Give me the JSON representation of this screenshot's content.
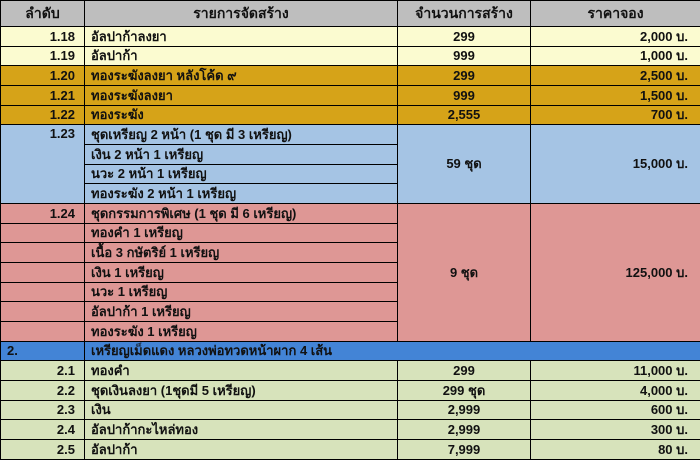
{
  "colors": {
    "header": "#BEBEBE",
    "cream": "#FBFBD0",
    "gold": "#D6A318",
    "blue": "#A5C4E4",
    "pink": "#DE9795",
    "section": "#4384D6",
    "green": "#D7E3BB",
    "border": "#000000"
  },
  "table": {
    "columns": [
      {
        "label": "ลำดับ"
      },
      {
        "label": "รายการจัดสร้าง"
      },
      {
        "label": "จำนวนการสร้าง"
      },
      {
        "label": "ราคาจอง"
      }
    ],
    "rows": [
      {
        "bg": "cream",
        "cells": [
          {
            "type": "no",
            "text": "1.18"
          },
          {
            "type": "item",
            "text": "อัลปาก้าลงยา"
          },
          {
            "type": "qty",
            "text": "299"
          },
          {
            "type": "price",
            "text": "2,000 บ."
          }
        ]
      },
      {
        "bg": "cream",
        "cells": [
          {
            "type": "no",
            "text": "1.19"
          },
          {
            "type": "item",
            "text": "อัลปาก้า"
          },
          {
            "type": "qty",
            "text": "999"
          },
          {
            "type": "price",
            "text": "1,000 บ."
          }
        ]
      },
      {
        "bg": "gold",
        "cells": [
          {
            "type": "no",
            "text": "1.20"
          },
          {
            "type": "item",
            "text": "ทองระฆังลงยา หลังโค้ด ๙"
          },
          {
            "type": "qty",
            "text": "299"
          },
          {
            "type": "price",
            "text": "2,500 บ."
          }
        ]
      },
      {
        "bg": "gold",
        "cells": [
          {
            "type": "no",
            "text": "1.21"
          },
          {
            "type": "item",
            "text": "ทองระฆังลงยา"
          },
          {
            "type": "qty",
            "text": "999"
          },
          {
            "type": "price",
            "text": "1,500 บ."
          }
        ]
      },
      {
        "bg": "gold",
        "cells": [
          {
            "type": "no",
            "text": "1.22"
          },
          {
            "type": "item",
            "text": "ทองระฆัง"
          },
          {
            "type": "qty",
            "text": "2,555"
          },
          {
            "type": "price",
            "text": "700 บ."
          }
        ]
      },
      {
        "bg": "blue",
        "cells": [
          {
            "type": "no",
            "text": "1.23",
            "rowspan": 4
          },
          {
            "type": "item",
            "text": "ชุดเหรียญ 2 หน้า (1 ชุด มี 3 เหรียญ)"
          },
          {
            "type": "qty",
            "text": "59 ชุด",
            "rowspan": 4
          },
          {
            "type": "price",
            "text": "15,000 บ.",
            "rowspan": 4
          }
        ]
      },
      {
        "bg": "blue",
        "cells": [
          {
            "type": "item",
            "text": "เงิน 2 หน้า 1 เหรียญ"
          }
        ]
      },
      {
        "bg": "blue",
        "cells": [
          {
            "type": "item",
            "text": "นวะ 2 หน้า 1 เหรียญ"
          }
        ]
      },
      {
        "bg": "blue",
        "cells": [
          {
            "type": "item",
            "text": "ทองระฆัง 2 หน้า 1 เหรียญ"
          }
        ]
      },
      {
        "bg": "pink",
        "cells": [
          {
            "type": "no",
            "text": "1.24"
          },
          {
            "type": "item",
            "text": "ชุดกรรมการพิเศษ (1 ชุด มี 6 เหรียญ)"
          },
          {
            "type": "qty",
            "text": "9 ชุด",
            "rowspan": 7
          },
          {
            "type": "price",
            "text": "125,000 บ.",
            "rowspan": 7
          }
        ]
      },
      {
        "bg": "pink",
        "cells": [
          {
            "type": "no",
            "text": ""
          },
          {
            "type": "item",
            "text": "ทองคำ 1 เหรียญ"
          }
        ]
      },
      {
        "bg": "pink",
        "cells": [
          {
            "type": "no",
            "text": ""
          },
          {
            "type": "item",
            "text": "เนื้อ 3 กษัตริย์ 1 เหรียญ"
          }
        ]
      },
      {
        "bg": "pink",
        "cells": [
          {
            "type": "no",
            "text": ""
          },
          {
            "type": "item",
            "text": "เงิน 1 เหรียญ"
          }
        ]
      },
      {
        "bg": "pink",
        "cells": [
          {
            "type": "no",
            "text": ""
          },
          {
            "type": "item",
            "text": "นวะ 1 เหรียญ"
          }
        ]
      },
      {
        "bg": "pink",
        "cells": [
          {
            "type": "no",
            "text": ""
          },
          {
            "type": "item",
            "text": "อัลปาก้า 1 เหรียญ"
          }
        ]
      },
      {
        "bg": "pink",
        "cells": [
          {
            "type": "no",
            "text": ""
          },
          {
            "type": "item",
            "text": "ทองระฆัง 1 เหรียญ"
          }
        ]
      },
      {
        "bg": "section",
        "cells": [
          {
            "type": "sec-no",
            "text": "2."
          },
          {
            "type": "title",
            "text": "เหรียญเม็ดแดง หลวงพ่อทวดหน้าผาก 4 เส้น",
            "colspan": 3
          }
        ]
      },
      {
        "bg": "green",
        "cells": [
          {
            "type": "no",
            "text": "2.1"
          },
          {
            "type": "item",
            "text": "ทองคำ"
          },
          {
            "type": "qty",
            "text": "299"
          },
          {
            "type": "price",
            "text": "11,000 บ."
          }
        ]
      },
      {
        "bg": "green",
        "cells": [
          {
            "type": "no",
            "text": "2.2"
          },
          {
            "type": "item",
            "text": "ชุดเงินลงยา (1ชุดมี 5 เหรียญ)"
          },
          {
            "type": "qty",
            "text": "299 ชุด"
          },
          {
            "type": "price",
            "text": "4,000 บ."
          }
        ]
      },
      {
        "bg": "green",
        "cells": [
          {
            "type": "no",
            "text": "2.3"
          },
          {
            "type": "item",
            "text": "เงิน"
          },
          {
            "type": "qty",
            "text": "2,999"
          },
          {
            "type": "price",
            "text": "600 บ."
          }
        ]
      },
      {
        "bg": "green",
        "cells": [
          {
            "type": "no",
            "text": "2.4"
          },
          {
            "type": "item",
            "text": "อัลปาก้ากะไหล่ทอง"
          },
          {
            "type": "qty",
            "text": "2,999"
          },
          {
            "type": "price",
            "text": "300 บ."
          }
        ]
      },
      {
        "bg": "green",
        "cells": [
          {
            "type": "no",
            "text": "2.5"
          },
          {
            "type": "item",
            "text": "อัลปาก้า"
          },
          {
            "type": "qty",
            "text": "7,999"
          },
          {
            "type": "price",
            "text": "80 บ."
          }
        ]
      }
    ]
  }
}
